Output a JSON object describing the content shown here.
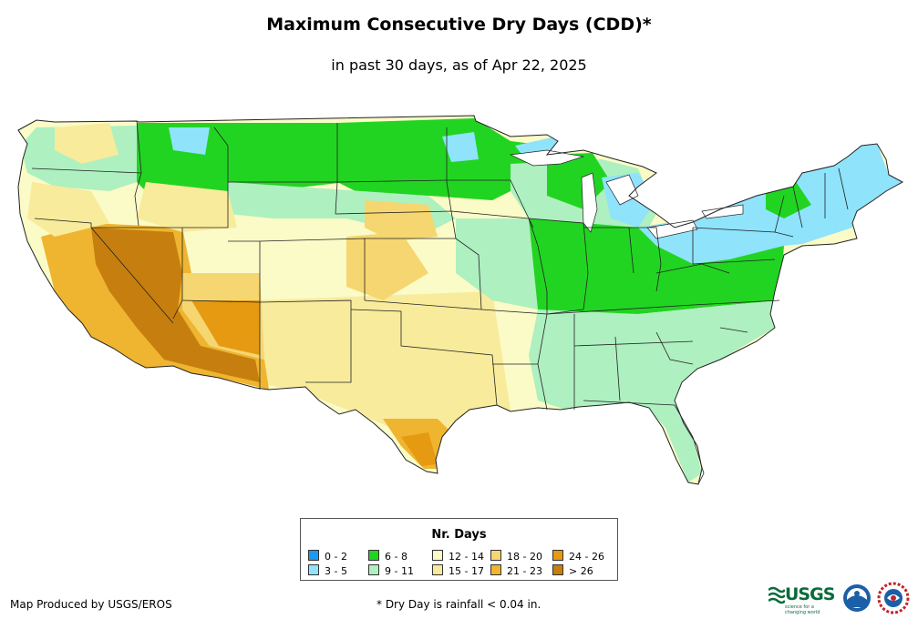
{
  "title": "Maximum Consecutive Dry Days (CDD)*",
  "subtitle": "in past 30 days, as of Apr 22, 2025",
  "legend": {
    "title": "Nr. Days",
    "items": [
      {
        "label": "0 - 2",
        "color": "#1a9bef"
      },
      {
        "label": "3 - 5",
        "color": "#8fe3fb"
      },
      {
        "label": "6 - 8",
        "color": "#22d422"
      },
      {
        "label": "9 - 11",
        "color": "#aef0c0"
      },
      {
        "label": "12 - 14",
        "color": "#fbfbc8"
      },
      {
        "label": "15 - 17",
        "color": "#f8eb9c"
      },
      {
        "label": "18 - 20",
        "color": "#f6d670"
      },
      {
        "label": "21 - 23",
        "color": "#efb530"
      },
      {
        "label": "24 - 26",
        "color": "#e59a12"
      },
      {
        "label": "> 26",
        "color": "#c67f0e"
      }
    ]
  },
  "footer": {
    "credit": "Map Produced by USGS/EROS",
    "note": "* Dry Day is rainfall < 0.04 in."
  },
  "logos": {
    "usgs": "USGS",
    "usgs_tagline": "science for a changing world"
  }
}
